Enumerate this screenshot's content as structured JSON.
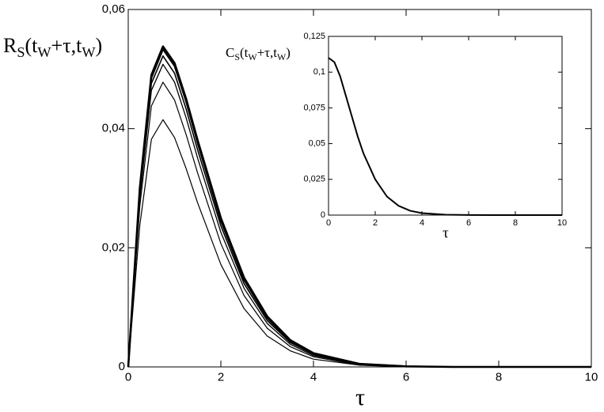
{
  "chart_data": [
    {
      "type": "line",
      "ylabel": [
        "R",
        "S",
        "(t",
        "W",
        "+τ,t",
        "W",
        ")"
      ],
      "xlabel": "τ",
      "x": [
        0,
        0.25,
        0.5,
        0.75,
        1,
        1.25,
        1.5,
        2,
        2.5,
        3,
        3.5,
        4,
        5,
        6,
        7,
        8,
        10
      ],
      "xlim": [
        0,
        10
      ],
      "xticks": [
        0,
        2,
        4,
        6,
        8,
        10
      ],
      "ylim": [
        0,
        0.06
      ],
      "yticks": [
        0,
        {
          "value": 0.02,
          "label": "0,02"
        },
        {
          "value": 0.04,
          "label": "0,04"
        },
        {
          "value": 0.06,
          "label": "0,06"
        }
      ],
      "series": [
        {
          "color": "#000000",
          "values": [
            0,
            0.03,
            0.049,
            0.0538,
            0.051,
            0.045,
            0.038,
            0.025,
            0.015,
            0.0085,
            0.0045,
            0.0023,
            0.0005,
            0.0001,
            0,
            0,
            0
          ]
        },
        {
          "color": "#000000",
          "values": [
            0,
            0.0297,
            0.0485,
            0.0533,
            0.0505,
            0.0445,
            0.0375,
            0.0245,
            0.0146,
            0.0082,
            0.0043,
            0.0022,
            0.0005,
            0.0001,
            0,
            0,
            0
          ]
        },
        {
          "color": "#000000",
          "values": [
            0,
            0.029,
            0.0476,
            0.0522,
            0.0493,
            0.0433,
            0.0364,
            0.0237,
            0.014,
            0.0078,
            0.0041,
            0.0021,
            0.0004,
            0.0001,
            0,
            0,
            0
          ]
        },
        {
          "color": "#000000",
          "values": [
            0,
            0.0284,
            0.0464,
            0.0508,
            0.0478,
            0.0418,
            0.035,
            0.0226,
            0.0132,
            0.0073,
            0.0038,
            0.0019,
            0.0004,
            0.0001,
            0,
            0,
            0
          ]
        },
        {
          "color": "#000000",
          "values": [
            0,
            0.027,
            0.0438,
            0.0478,
            0.0448,
            0.039,
            0.0325,
            0.0207,
            0.012,
            0.0065,
            0.0034,
            0.0017,
            0.0003,
            0.0001,
            0,
            0,
            0
          ]
        },
        {
          "color": "#000000",
          "values": [
            0,
            0.0238,
            0.0382,
            0.0415,
            0.0385,
            0.0333,
            0.0275,
            0.0172,
            0.0098,
            0.0052,
            0.0027,
            0.0013,
            0.0003,
            0,
            0,
            0,
            0
          ]
        }
      ]
    },
    {
      "type": "line",
      "ylabel": [
        "C",
        "S",
        "(t",
        "W",
        "+τ,t",
        "W",
        ")"
      ],
      "xlabel": "τ",
      "x": [
        0,
        0.25,
        0.5,
        0.75,
        1,
        1.25,
        1.5,
        2,
        2.5,
        3,
        3.5,
        4,
        5,
        6,
        7,
        8,
        10
      ],
      "xlim": [
        0,
        10
      ],
      "xticks": [
        0,
        2,
        4,
        6,
        8,
        10
      ],
      "ylim": [
        0,
        0.125
      ],
      "yticks": [
        0,
        {
          "value": 0.025,
          "label": "0,025"
        },
        {
          "value": 0.05,
          "label": "0,05"
        },
        {
          "value": 0.075,
          "label": "0,075"
        },
        {
          "value": 0.1,
          "label": "0,1"
        },
        {
          "value": 0.125,
          "label": "0,125"
        }
      ],
      "series": [
        {
          "color": "#000000",
          "values": [
            0.11,
            0.107,
            0.097,
            0.083,
            0.069,
            0.055,
            0.043,
            0.025,
            0.013,
            0.0065,
            0.003,
            0.0014,
            0.0003,
            0.0001,
            0,
            0,
            0
          ]
        }
      ]
    }
  ]
}
